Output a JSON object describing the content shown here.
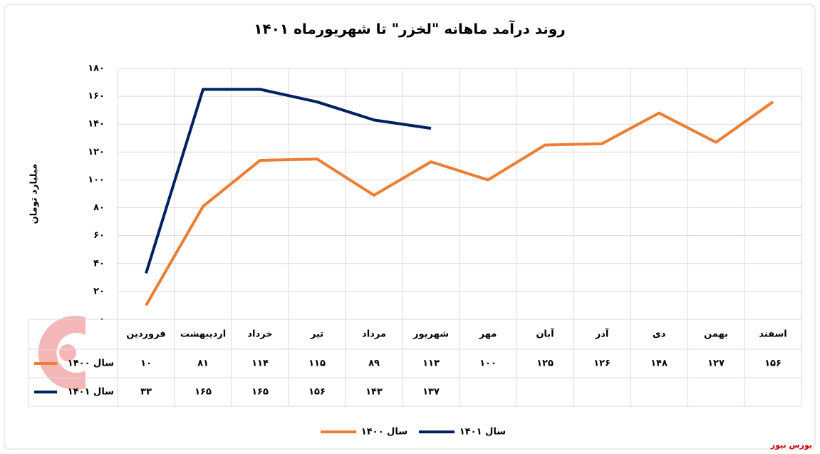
{
  "chart_data": {
    "type": "line",
    "title": "روند درآمد ماهانه \"لخزر\" تا شهریورماه ۱۴۰۱",
    "y_label": "میلیارد تومان",
    "source": "بورس نیوز",
    "categories": [
      "فروردین",
      "اردیبهشت",
      "خرداد",
      "تیر",
      "مرداد",
      "شهریور",
      "مهر",
      "آبان",
      "آذر",
      "دی",
      "بهمن",
      "اسفند"
    ],
    "series": [
      {
        "name": "سال ۱۴۰۰",
        "color": "#ed7d31",
        "values": [
          10,
          81,
          114,
          115,
          89,
          113,
          100,
          125,
          126,
          148,
          127,
          156
        ],
        "value_labels": [
          "۱۰",
          "۸۱",
          "۱۱۴",
          "۱۱۵",
          "۸۹",
          "۱۱۳",
          "۱۰۰",
          "۱۲۵",
          "۱۲۶",
          "۱۴۸",
          "۱۲۷",
          "۱۵۶"
        ]
      },
      {
        "name": "سال ۱۴۰۱",
        "color": "#002060",
        "values": [
          33,
          165,
          165,
          156,
          143,
          137,
          null,
          null,
          null,
          null,
          null,
          null
        ],
        "value_labels": [
          "۳۳",
          "۱۶۵",
          "۱۶۵",
          "۱۵۶",
          "۱۴۳",
          "۱۳۷",
          null,
          null,
          null,
          null,
          null,
          null
        ]
      }
    ],
    "ylim": [
      0,
      180
    ],
    "yticks": [
      {
        "value": 0,
        "label": "۰"
      },
      {
        "value": 20,
        "label": "۲۰"
      },
      {
        "value": 40,
        "label": "۴۰"
      },
      {
        "value": 60,
        "label": "۶۰"
      },
      {
        "value": 80,
        "label": "۸۰"
      },
      {
        "value": 100,
        "label": "۱۰۰"
      },
      {
        "value": 120,
        "label": "۱۲۰"
      },
      {
        "value": 140,
        "label": "۱۴۰"
      },
      {
        "value": 160,
        "label": "۱۶۰"
      },
      {
        "value": 180,
        "label": "۱۸۰"
      }
    ],
    "grid": true,
    "legend": "bottom"
  }
}
